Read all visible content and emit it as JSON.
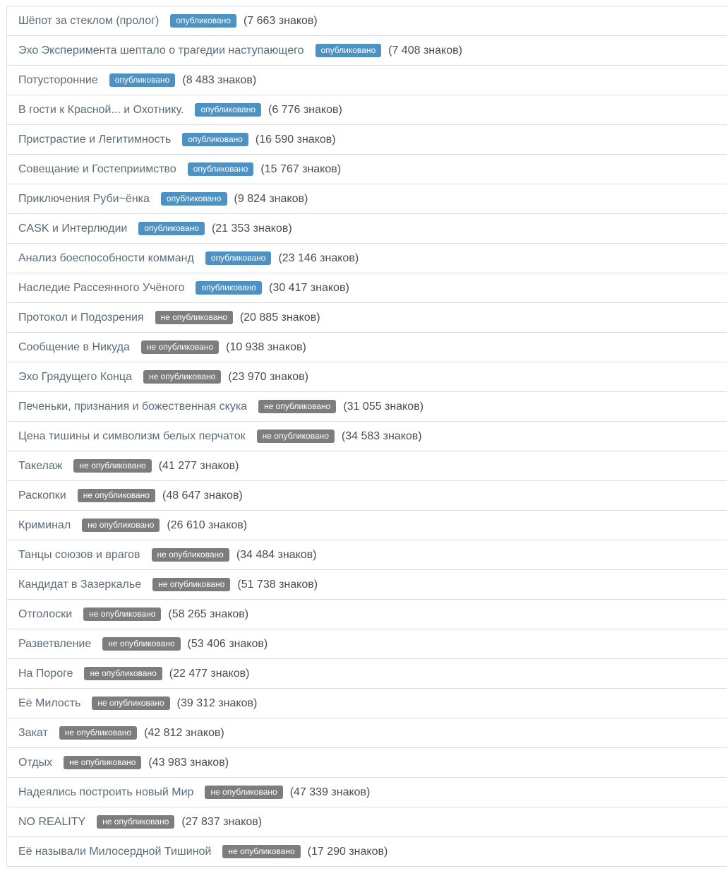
{
  "page": {
    "background": "#ffffff",
    "border_color": "#dddddd"
  },
  "colors": {
    "published_badge": "#4d92c3",
    "unpublished_badge": "#7d7d7d",
    "badge_text": "#ffffff",
    "title_text": "#5b6b78",
    "count_text": "#4c4c4c"
  },
  "status_labels": {
    "published": "опубликовано",
    "unpublished": "не опубликовано"
  },
  "chapters": [
    {
      "title": "Шёпот за стеклом (пролог)",
      "status": "published",
      "status_label": "опубликовано",
      "count_label": "(7 663 знаков)"
    },
    {
      "title": "Эхо Эксперимента шептало о трагедии наступающего",
      "status": "published",
      "status_label": "опубликовано",
      "count_label": "(7 408 знаков)"
    },
    {
      "title": "Потусторонние",
      "status": "published",
      "status_label": "опубликовано",
      "count_label": "(8 483 знаков)"
    },
    {
      "title": "В гости к Красной... и Охотнику.",
      "status": "published",
      "status_label": "опубликовано",
      "count_label": "(6 776 знаков)"
    },
    {
      "title": "Пристрастие и Легитимность",
      "status": "published",
      "status_label": "опубликовано",
      "count_label": "(16 590 знаков)"
    },
    {
      "title": "Совещание и Гостеприимство",
      "status": "published",
      "status_label": "опубликовано",
      "count_label": "(15 767 знаков)"
    },
    {
      "title": "Приключения Руби~ёнка",
      "status": "published",
      "status_label": "опубликовано",
      "count_label": "(9 824 знаков)"
    },
    {
      "title": "CASK и Интерлюдии",
      "status": "published",
      "status_label": "опубликовано",
      "count_label": "(21 353 знаков)"
    },
    {
      "title": "Анализ боеспособности комманд",
      "status": "published",
      "status_label": "опубликовано",
      "count_label": "(23 146 знаков)"
    },
    {
      "title": "Наследие Рассеянного Учёного",
      "status": "published",
      "status_label": "опубликовано",
      "count_label": "(30 417 знаков)"
    },
    {
      "title": "Протокол и Подозрения",
      "status": "unpublished",
      "status_label": "не опубликовано",
      "count_label": "(20 885 знаков)"
    },
    {
      "title": "Сообщение в Никуда",
      "status": "unpublished",
      "status_label": "не опубликовано",
      "count_label": "(10 938 знаков)"
    },
    {
      "title": "Эхо Грядущего Конца",
      "status": "unpublished",
      "status_label": "не опубликовано",
      "count_label": "(23 970 знаков)"
    },
    {
      "title": "Печеньки, признания и божественная скука",
      "status": "unpublished",
      "status_label": "не опубликовано",
      "count_label": "(31 055 знаков)"
    },
    {
      "title": "Цена тишины и символизм белых перчаток",
      "status": "unpublished",
      "status_label": "не опубликовано",
      "count_label": "(34 583 знаков)"
    },
    {
      "title": "Такелаж",
      "status": "unpublished",
      "status_label": "не опубликовано",
      "count_label": "(41 277 знаков)"
    },
    {
      "title": "Раскопки",
      "status": "unpublished",
      "status_label": "не опубликовано",
      "count_label": "(48 647 знаков)"
    },
    {
      "title": "Криминал",
      "status": "unpublished",
      "status_label": "не опубликовано",
      "count_label": "(26 610 знаков)"
    },
    {
      "title": "Танцы союзов и врагов",
      "status": "unpublished",
      "status_label": "не опубликовано",
      "count_label": "(34 484 знаков)"
    },
    {
      "title": "Кандидат в Зазеркалье",
      "status": "unpublished",
      "status_label": "не опубликовано",
      "count_label": "(51 738 знаков)"
    },
    {
      "title": "Отголоски",
      "status": "unpublished",
      "status_label": "не опубликовано",
      "count_label": "(58 265 знаков)"
    },
    {
      "title": "Разветвление",
      "status": "unpublished",
      "status_label": "не опубликовано",
      "count_label": "(53 406 знаков)"
    },
    {
      "title": "На Пороге",
      "status": "unpublished",
      "status_label": "не опубликовано",
      "count_label": "(22 477 знаков)"
    },
    {
      "title": "Её Милость",
      "status": "unpublished",
      "status_label": "не опубликовано",
      "count_label": "(39 312 знаков)"
    },
    {
      "title": "Закат",
      "status": "unpublished",
      "status_label": "не опубликовано",
      "count_label": "(42 812 знаков)"
    },
    {
      "title": "Отдых",
      "status": "unpublished",
      "status_label": "не опубликовано",
      "count_label": "(43 983 знаков)"
    },
    {
      "title": "Надеялись построить новый Мир",
      "status": "unpublished",
      "status_label": "не опубликовано",
      "count_label": "(47 339 знаков)"
    },
    {
      "title": "NO REALITY",
      "status": "unpublished",
      "status_label": "не опубликовано",
      "count_label": "(27 837 знаков)"
    },
    {
      "title": "Её называли Милосердной Тишиной",
      "status": "unpublished",
      "status_label": "не опубликовано",
      "count_label": "(17 290 знаков)"
    }
  ]
}
